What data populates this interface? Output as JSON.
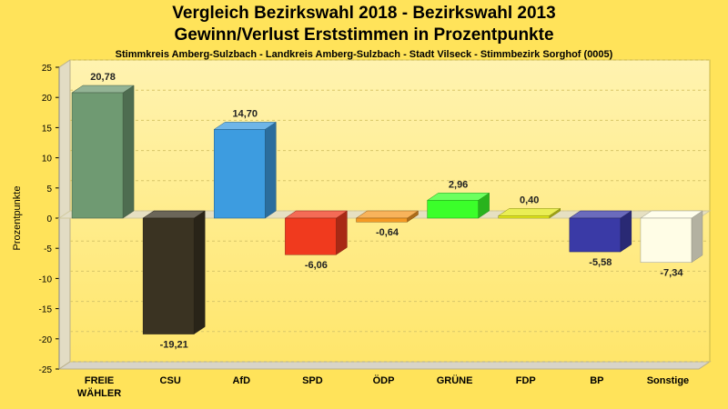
{
  "chart_data": {
    "type": "bar",
    "title": "Vergleich Bezirkswahl 2018 - Bezirkswahl 2013",
    "subtitle": "Gewinn/Verlust Erststimmen in Prozentpunkte",
    "caption": "Stimmkreis Amberg-Sulzbach - Landkreis Amberg-Sulzbach - Stadt Vilseck - Stimmbezirk Sorghof (0005)",
    "ylabel": "Prozentpunkte",
    "ylim": [
      -25,
      25
    ],
    "yticks": [
      -25,
      -20,
      -15,
      -10,
      -5,
      0,
      5,
      10,
      15,
      20,
      25
    ],
    "categories": [
      "FREIE\nWÄHLER",
      "CSU",
      "AfD",
      "SPD",
      "ÖDP",
      "GRÜNE",
      "FDP",
      "BP",
      "Sonstige"
    ],
    "values": [
      20.78,
      -19.21,
      14.7,
      -6.06,
      -0.64,
      2.96,
      0.4,
      -5.58,
      -7.34
    ],
    "value_labels": [
      "20,78",
      "-19,21",
      "14,70",
      "-6,06",
      "-0,64",
      "2,96",
      "0,40",
      "-5,58",
      "-7,34"
    ],
    "colors": [
      "#6f9a72",
      "#3a3322",
      "#3d9ce0",
      "#f03a1e",
      "#f59a24",
      "#3bff2a",
      "#e3e81c",
      "#3a3aa6",
      "#fffde6"
    ],
    "grid": true,
    "legend": "none"
  }
}
